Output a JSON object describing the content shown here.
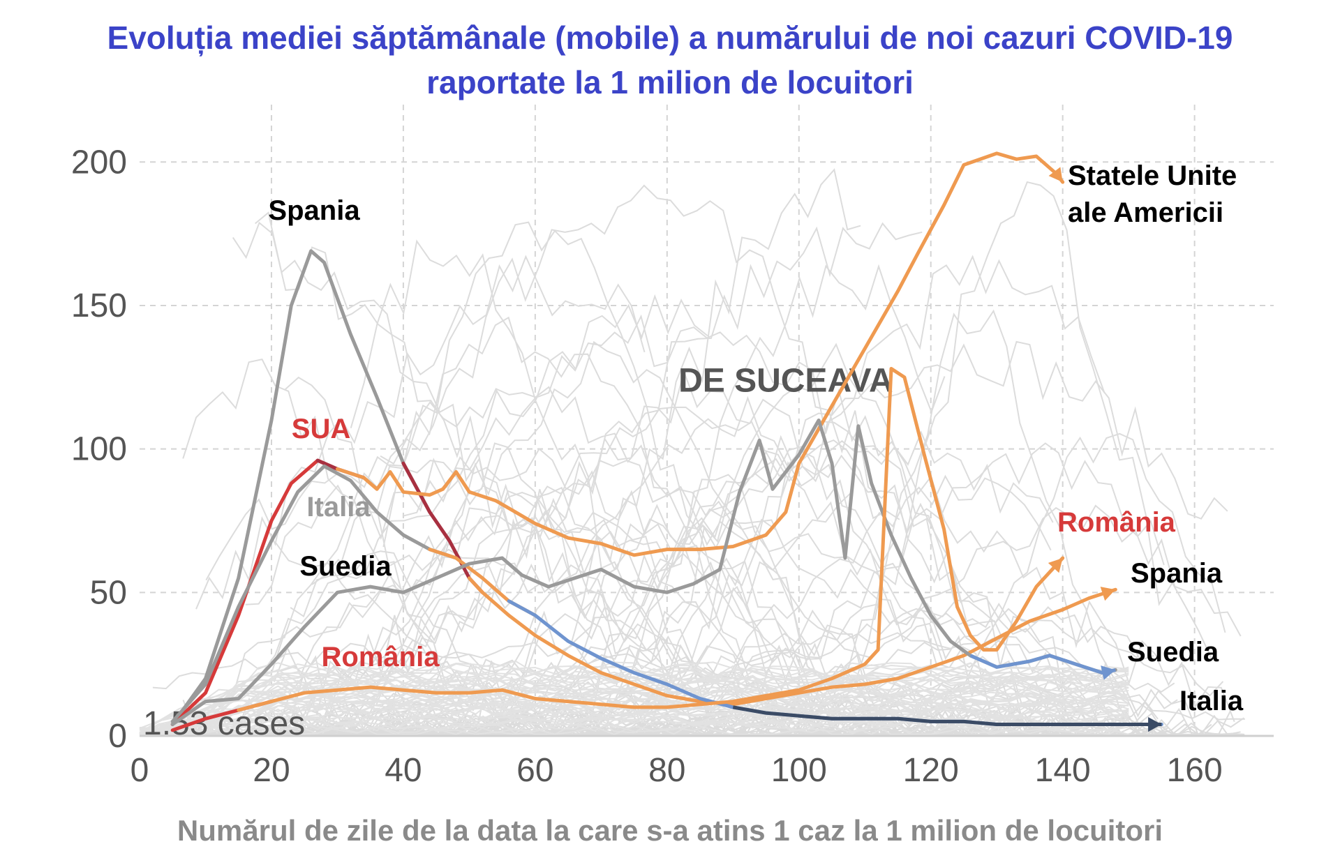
{
  "chart_data": {
    "type": "line",
    "title_line1": "Evoluția mediei săptămânale (mobile) a numărului de noi cazuri COVID-19",
    "title_line2": "raportate la 1 milion de locuitori",
    "xlabel": "Numărul de zile de la data la care s-a atins 1 caz la 1 milion de locuitori",
    "ylabel": "",
    "xlim": [
      0,
      172
    ],
    "ylim": [
      0,
      220
    ],
    "x_ticks": [
      "0",
      "20",
      "40",
      "60",
      "80",
      "100",
      "120",
      "140",
      "160"
    ],
    "y_ticks": [
      "0",
      "50",
      "100",
      "150",
      "200"
    ],
    "grid": true,
    "baseline_note": "1.53 cases",
    "watermark": "DE SUCEAVA",
    "colors": {
      "orange": "#ef9a50",
      "red": "#d63a3a",
      "dark_red": "#a83040",
      "gray": "#9a9a9a",
      "blue": "#6f94cf",
      "navy": "#3b4b65",
      "background_lines": "#dcdcdc",
      "title": "#3b43c8"
    },
    "series": [
      {
        "name": "Spania",
        "label_end": "Spania",
        "points": [
          [
            5,
            4
          ],
          [
            10,
            20
          ],
          [
            15,
            55
          ],
          [
            20,
            110
          ],
          [
            23,
            150
          ],
          [
            26,
            169
          ],
          [
            28,
            165
          ],
          [
            32,
            140
          ],
          [
            36,
            118
          ],
          [
            40,
            95
          ],
          [
            44,
            78
          ],
          [
            47,
            68
          ],
          [
            50,
            55
          ],
          [
            52,
            50
          ],
          [
            56,
            42
          ],
          [
            60,
            35
          ],
          [
            65,
            28
          ],
          [
            70,
            22
          ],
          [
            75,
            18
          ],
          [
            80,
            14
          ],
          [
            85,
            12
          ],
          [
            90,
            11
          ],
          [
            95,
            13
          ],
          [
            100,
            15
          ],
          [
            105,
            17
          ],
          [
            110,
            18
          ],
          [
            115,
            20
          ],
          [
            120,
            24
          ],
          [
            125,
            28
          ],
          [
            130,
            34
          ],
          [
            135,
            40
          ],
          [
            140,
            44
          ],
          [
            144,
            48
          ],
          [
            148,
            51
          ]
        ]
      },
      {
        "name": "SUA",
        "label_end": "Statele Unite ale Americii",
        "points": [
          [
            5,
            4
          ],
          [
            10,
            15
          ],
          [
            15,
            42
          ],
          [
            20,
            75
          ],
          [
            23,
            88
          ],
          [
            27,
            96
          ],
          [
            30,
            93
          ],
          [
            34,
            90
          ],
          [
            36,
            86
          ],
          [
            38,
            92
          ],
          [
            40,
            85
          ],
          [
            44,
            84
          ],
          [
            46,
            86
          ],
          [
            48,
            92
          ],
          [
            50,
            85
          ],
          [
            54,
            82
          ],
          [
            57,
            78
          ],
          [
            60,
            74
          ],
          [
            65,
            69
          ],
          [
            70,
            67
          ],
          [
            75,
            63
          ],
          [
            80,
            65
          ],
          [
            85,
            65
          ],
          [
            90,
            66
          ],
          [
            95,
            70
          ],
          [
            98,
            78
          ],
          [
            100,
            95
          ],
          [
            105,
            115
          ],
          [
            110,
            135
          ],
          [
            115,
            155
          ],
          [
            118,
            168
          ],
          [
            122,
            185
          ],
          [
            125,
            199
          ],
          [
            130,
            203
          ],
          [
            133,
            201
          ],
          [
            136,
            202
          ],
          [
            139,
            196
          ],
          [
            140,
            193
          ]
        ]
      },
      {
        "name": "Italia",
        "label_end": "Italia",
        "points": [
          [
            5,
            5
          ],
          [
            10,
            18
          ],
          [
            15,
            45
          ],
          [
            20,
            68
          ],
          [
            24,
            85
          ],
          [
            28,
            94
          ],
          [
            32,
            89
          ],
          [
            36,
            78
          ],
          [
            40,
            70
          ],
          [
            44,
            65
          ],
          [
            48,
            62
          ],
          [
            52,
            55
          ],
          [
            56,
            47
          ],
          [
            60,
            42
          ],
          [
            65,
            33
          ],
          [
            70,
            27
          ],
          [
            75,
            22
          ],
          [
            80,
            18
          ],
          [
            85,
            13
          ],
          [
            90,
            10
          ],
          [
            95,
            8
          ],
          [
            100,
            7
          ],
          [
            105,
            6
          ],
          [
            110,
            6
          ],
          [
            115,
            6
          ],
          [
            120,
            5
          ],
          [
            125,
            5
          ],
          [
            130,
            4
          ],
          [
            135,
            4
          ],
          [
            140,
            4
          ],
          [
            145,
            4
          ],
          [
            150,
            4
          ],
          [
            155,
            4
          ]
        ]
      },
      {
        "name": "Suedia",
        "label_end": "Suedia",
        "points": [
          [
            5,
            4
          ],
          [
            10,
            12
          ],
          [
            15,
            13
          ],
          [
            20,
            25
          ],
          [
            25,
            38
          ],
          [
            30,
            50
          ],
          [
            35,
            52
          ],
          [
            40,
            50
          ],
          [
            45,
            55
          ],
          [
            50,
            60
          ],
          [
            55,
            62
          ],
          [
            58,
            56
          ],
          [
            62,
            52
          ],
          [
            66,
            55
          ],
          [
            70,
            58
          ],
          [
            75,
            52
          ],
          [
            80,
            50
          ],
          [
            84,
            53
          ],
          [
            88,
            58
          ],
          [
            91,
            85
          ],
          [
            94,
            103
          ],
          [
            96,
            86
          ],
          [
            98,
            92
          ],
          [
            100,
            98
          ],
          [
            103,
            110
          ],
          [
            105,
            95
          ],
          [
            107,
            62
          ],
          [
            109,
            108
          ],
          [
            111,
            88
          ],
          [
            114,
            70
          ],
          [
            117,
            55
          ],
          [
            120,
            42
          ],
          [
            123,
            33
          ],
          [
            126,
            28
          ],
          [
            130,
            24
          ],
          [
            135,
            26
          ],
          [
            138,
            28
          ],
          [
            142,
            25
          ],
          [
            146,
            22
          ],
          [
            148,
            23
          ]
        ]
      },
      {
        "name": "România",
        "label_end": "România",
        "points": [
          [
            5,
            2
          ],
          [
            10,
            6
          ],
          [
            15,
            9
          ],
          [
            20,
            12
          ],
          [
            25,
            15
          ],
          [
            30,
            16
          ],
          [
            35,
            17
          ],
          [
            40,
            16
          ],
          [
            45,
            15
          ],
          [
            50,
            15
          ],
          [
            55,
            16
          ],
          [
            60,
            13
          ],
          [
            65,
            12
          ],
          [
            70,
            11
          ],
          [
            75,
            10
          ],
          [
            80,
            10
          ],
          [
            85,
            11
          ],
          [
            90,
            12
          ],
          [
            95,
            14
          ],
          [
            100,
            16
          ],
          [
            105,
            20
          ],
          [
            110,
            25
          ],
          [
            112,
            30
          ],
          [
            114,
            128
          ],
          [
            116,
            125
          ],
          [
            119,
            98
          ],
          [
            122,
            72
          ],
          [
            124,
            45
          ],
          [
            126,
            35
          ],
          [
            128,
            30
          ],
          [
            130,
            30
          ],
          [
            133,
            40
          ],
          [
            136,
            52
          ],
          [
            140,
            62
          ]
        ]
      }
    ],
    "labels": [
      {
        "text": "Spania",
        "color": "#000000"
      },
      {
        "text": "SUA",
        "color": "#d63a3a"
      },
      {
        "text": "Italia",
        "color": "#9a9a9a"
      },
      {
        "text": "Suedia",
        "color": "#000000"
      },
      {
        "text": "România",
        "color": "#d63a3a"
      },
      {
        "text": "Statele Unite",
        "color": "#000000"
      },
      {
        "text": "ale Americii",
        "color": "#000000"
      },
      {
        "text": "România",
        "color": "#d63a3a"
      },
      {
        "text": "Spania",
        "color": "#000000"
      },
      {
        "text": "Suedia",
        "color": "#000000"
      },
      {
        "text": "Italia",
        "color": "#000000"
      }
    ]
  }
}
